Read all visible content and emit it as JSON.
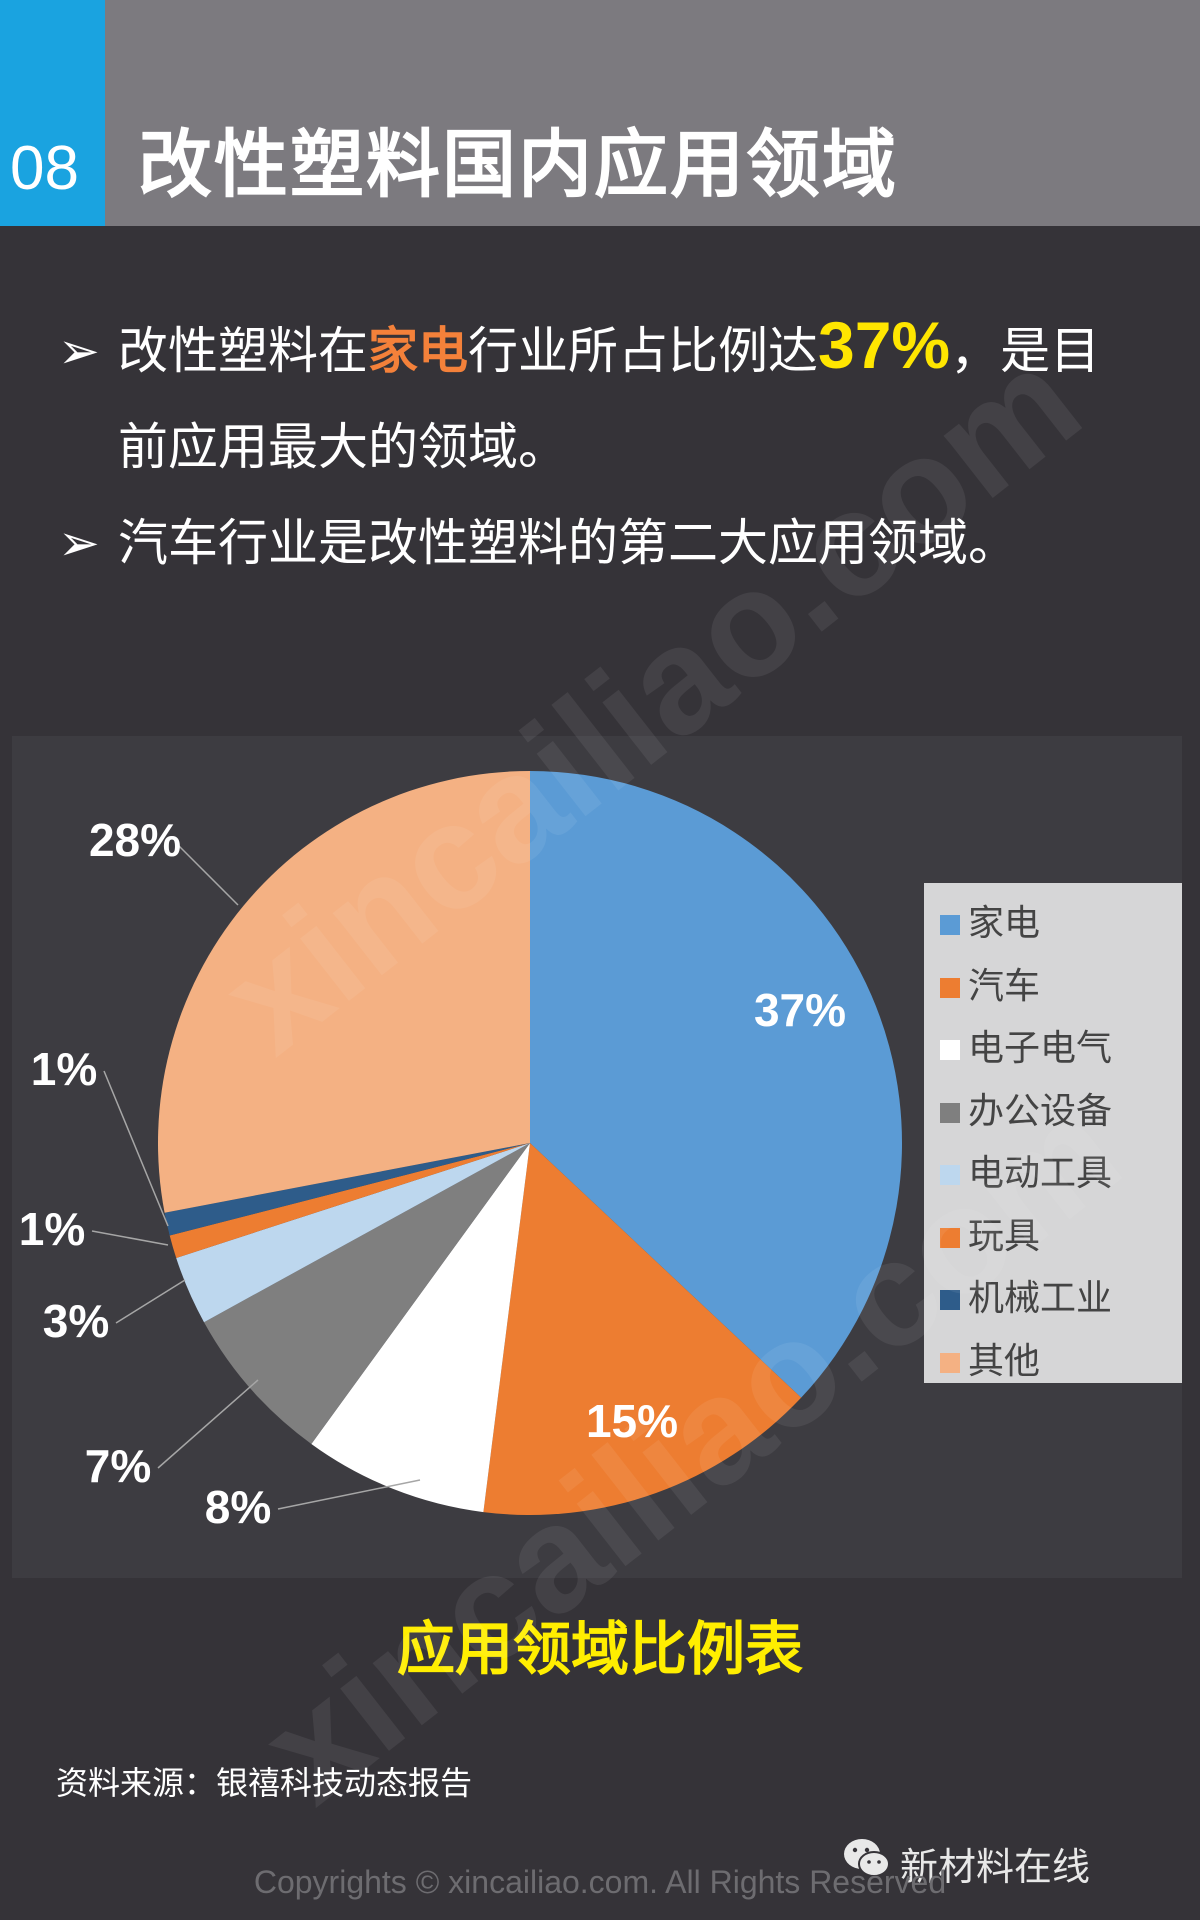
{
  "header": {
    "number": "08",
    "title": "改性塑料国内应用领域"
  },
  "bullets": {
    "arrow": "➢",
    "b1_prefix": "改性塑料在",
    "b1_highlight": "家电",
    "b1_middle": "行业所占比例达",
    "b1_percent": "37%",
    "b1_suffix": "，是目",
    "b1_line2": "前应用最大的领域。",
    "b2": "汽车行业是改性塑料的第二大应用领域。"
  },
  "chart_data": {
    "type": "pie",
    "title": "应用领域比例表",
    "categories": [
      "家电",
      "汽车",
      "电子电气",
      "办公设备",
      "电动工具",
      "玩具",
      "机械工业",
      "其他"
    ],
    "values": [
      37,
      15,
      8,
      7,
      3,
      1,
      1,
      28
    ],
    "labels": [
      "37%",
      "15%",
      "8%",
      "7%",
      "3%",
      "1%",
      "1%",
      "28%"
    ],
    "colors": [
      "#5b9bd5",
      "#ed7d31",
      "#ffffff",
      "#7f7f7f",
      "#bdd7ee",
      "#ed7d31",
      "#2e5c8a",
      "#f4b183"
    ],
    "legend_position": "right"
  },
  "footer": {
    "source": "资料来源：银禧科技动态报告",
    "brand": "新材料在线",
    "copyright": "Copyrights © xincailiao.com. All Rights Reserved"
  },
  "watermark": "xincailiao.com"
}
